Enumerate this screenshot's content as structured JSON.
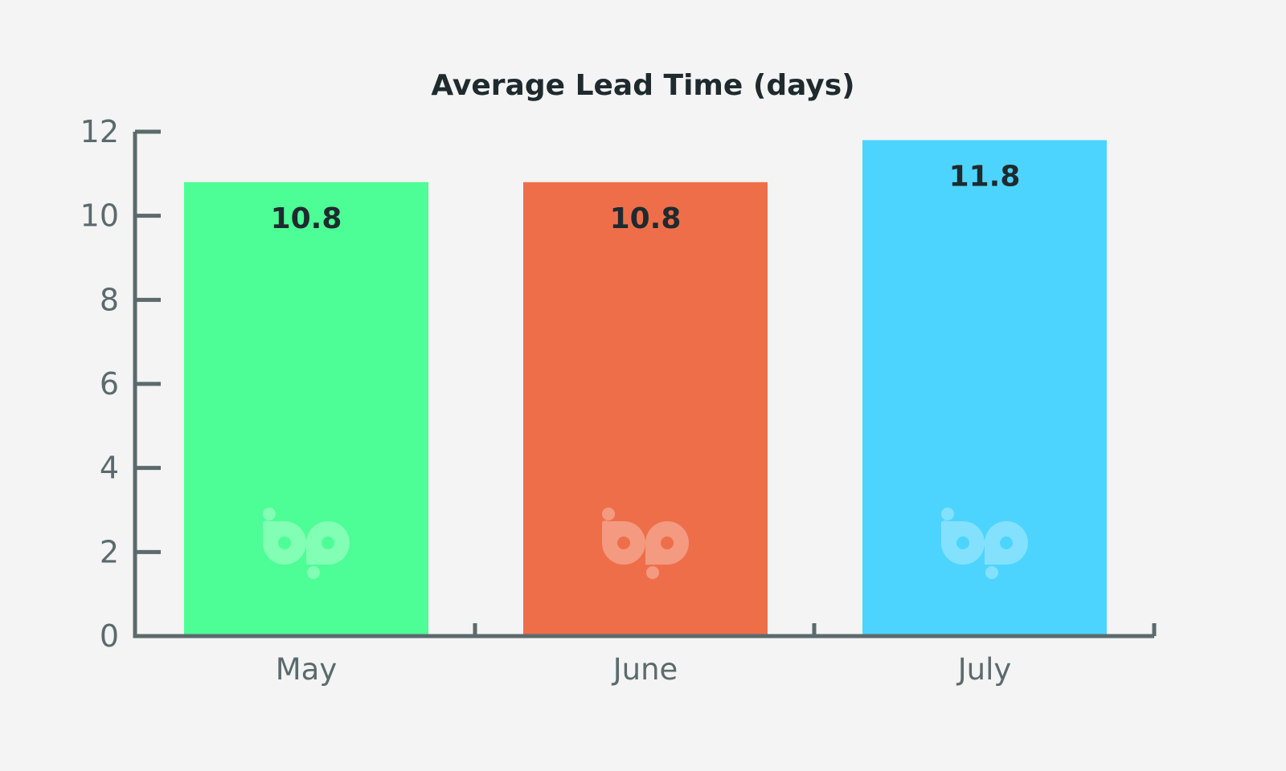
{
  "chart_data": {
    "type": "bar",
    "title": "Average Lead Time (days)",
    "categories": [
      "May",
      "June",
      "July"
    ],
    "values": [
      10.8,
      10.8,
      11.8
    ],
    "data_labels": [
      "10.8",
      "10.8",
      "11.8"
    ],
    "colors": [
      "#4dfe96",
      "#ef6e4a",
      "#4dd4fe"
    ],
    "ylim": [
      0,
      12
    ],
    "yticks": [
      0,
      2,
      4,
      6,
      8,
      10,
      12
    ],
    "xlabel": "",
    "ylabel": "",
    "grid": false,
    "legend": "none"
  },
  "watermark": {
    "icon": "bp-logo-icon"
  }
}
